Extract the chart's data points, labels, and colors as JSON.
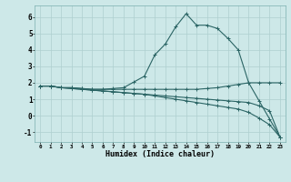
{
  "xlabel": "Humidex (Indice chaleur)",
  "xlim": [
    -0.5,
    23.5
  ],
  "ylim": [
    -1.6,
    6.7
  ],
  "yticks": [
    -1,
    0,
    1,
    2,
    3,
    4,
    5,
    6
  ],
  "xticks": [
    0,
    1,
    2,
    3,
    4,
    5,
    6,
    7,
    8,
    9,
    10,
    11,
    12,
    13,
    14,
    15,
    16,
    17,
    18,
    19,
    20,
    21,
    22,
    23
  ],
  "background_color": "#cde8e8",
  "line_color": "#2a6464",
  "grid_color": "#aecfcf",
  "series": [
    {
      "x": [
        0,
        1,
        2,
        3,
        4,
        5,
        6,
        7,
        8,
        9,
        10,
        11,
        12,
        13,
        14,
        15,
        16,
        17,
        18,
        19,
        20,
        21,
        22,
        23
      ],
      "y": [
        1.8,
        1.8,
        1.7,
        1.7,
        1.65,
        1.6,
        1.6,
        1.65,
        1.7,
        2.05,
        2.4,
        3.7,
        4.35,
        5.4,
        6.2,
        5.5,
        5.5,
        5.3,
        4.7,
        4.0,
        2.0,
        0.9,
        -0.2,
        -1.3
      ]
    },
    {
      "x": [
        0,
        1,
        2,
        3,
        4,
        5,
        6,
        7,
        8,
        9,
        10,
        11,
        12,
        13,
        14,
        15,
        16,
        17,
        18,
        19,
        20,
        21,
        22,
        23
      ],
      "y": [
        1.8,
        1.8,
        1.7,
        1.7,
        1.65,
        1.6,
        1.6,
        1.6,
        1.6,
        1.6,
        1.6,
        1.6,
        1.6,
        1.6,
        1.6,
        1.6,
        1.65,
        1.7,
        1.8,
        1.9,
        2.0,
        2.0,
        2.0,
        2.0
      ]
    },
    {
      "x": [
        0,
        1,
        2,
        3,
        4,
        5,
        6,
        7,
        8,
        9,
        10,
        11,
        12,
        13,
        14,
        15,
        16,
        17,
        18,
        19,
        20,
        21,
        22,
        23
      ],
      "y": [
        1.8,
        1.8,
        1.7,
        1.65,
        1.6,
        1.55,
        1.5,
        1.45,
        1.4,
        1.35,
        1.3,
        1.25,
        1.2,
        1.15,
        1.1,
        1.05,
        1.0,
        0.95,
        0.9,
        0.85,
        0.8,
        0.6,
        0.3,
        -1.3
      ]
    },
    {
      "x": [
        0,
        1,
        2,
        3,
        4,
        5,
        6,
        7,
        8,
        9,
        10,
        11,
        12,
        13,
        14,
        15,
        16,
        17,
        18,
        19,
        20,
        21,
        22,
        23
      ],
      "y": [
        1.8,
        1.8,
        1.7,
        1.65,
        1.6,
        1.55,
        1.5,
        1.45,
        1.4,
        1.35,
        1.3,
        1.2,
        1.1,
        1.0,
        0.9,
        0.8,
        0.7,
        0.6,
        0.5,
        0.4,
        0.2,
        -0.15,
        -0.55,
        -1.3
      ]
    }
  ]
}
